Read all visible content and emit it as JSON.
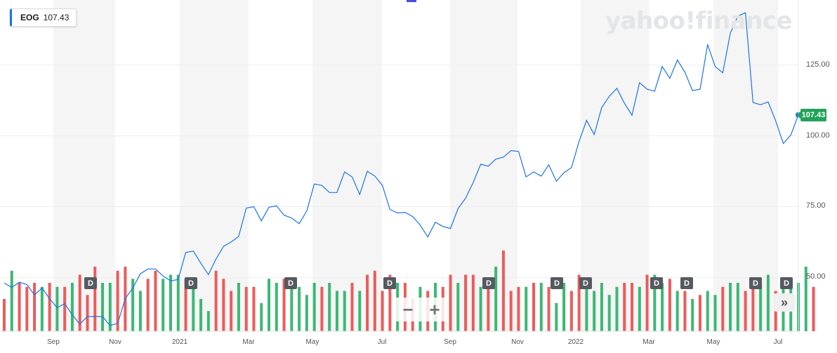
{
  "ticker": {
    "symbol": "EOG",
    "price": "107.43"
  },
  "brand": {
    "text": "yahoo!finance"
  },
  "last_price_label": "107.43",
  "controls": {
    "zoom_out": "−",
    "zoom_in": "+",
    "next": "»"
  },
  "dividend_marker": "D",
  "colors": {
    "line": "#1a73e8",
    "volume_up": "#3cb874",
    "volume_down": "#ec5b5b",
    "price_tag": "#21a35a"
  },
  "chart_data": {
    "type": "line",
    "title": "",
    "xlabel": "",
    "ylabel": "",
    "ylim": [
      31,
      148
    ],
    "yticks": [
      "125.00",
      "100.00",
      "75.00",
      "50.00"
    ],
    "xticks": [
      "Sep",
      "Nov",
      "2021",
      "Mar",
      "May",
      "Jul",
      "Sep",
      "Nov",
      "2022",
      "Mar",
      "May",
      "Jul"
    ],
    "grid": true,
    "series": [
      {
        "values": [
          48,
          46.5,
          48.3,
          47.5,
          43.8,
          46.3,
          42.5,
          39.3,
          40.8,
          36.8,
          33.5,
          36.2,
          36.2,
          36.2,
          33,
          33.8,
          42.5,
          46.3,
          51.3,
          53,
          53,
          50.5,
          48.8,
          49.3,
          58.8,
          59.3,
          55,
          51,
          56.5,
          61,
          62.5,
          64.5,
          74.5,
          75,
          70,
          74.8,
          75.3,
          72,
          71,
          69,
          73.5,
          83,
          82.5,
          80,
          80,
          87.3,
          85.5,
          79.3,
          87.5,
          85.8,
          82.5,
          74,
          72.8,
          73,
          71.5,
          68.5,
          64.3,
          69.5,
          68,
          67.3,
          74.3,
          78,
          83.5,
          90,
          89.3,
          91.8,
          92.5,
          94.8,
          94.5,
          85.5,
          87.3,
          85.8,
          89.8,
          84,
          87,
          88.8,
          98,
          105.5,
          100.5,
          110,
          114,
          116.8,
          111.5,
          107.3,
          118.8,
          116.5,
          115.8,
          124.5,
          120.3,
          126.8,
          122.5,
          116,
          116.5,
          132.3,
          124.5,
          122.3,
          136.3,
          142.3,
          143.5,
          111.8,
          111,
          112,
          105.3,
          97.3,
          100.3,
          107.4
        ]
      }
    ],
    "volume": {
      "values": [
        8,
        15,
        12,
        11,
        12,
        11,
        12,
        11,
        11,
        12,
        14,
        9,
        16,
        12,
        12,
        15,
        16,
        13,
        10,
        13,
        15,
        13,
        14,
        14,
        13,
        11,
        8,
        5,
        15,
        13,
        10,
        12,
        11,
        11,
        7,
        13,
        12,
        13,
        11,
        11,
        9,
        12,
        11,
        12,
        10,
        10,
        12,
        10,
        14,
        15,
        10,
        14,
        12,
        12,
        8,
        11,
        10,
        12,
        11,
        14,
        12,
        14,
        14,
        11,
        13,
        16,
        20,
        10,
        11,
        11,
        12,
        12,
        11,
        7,
        12,
        10,
        14,
        13,
        10,
        12,
        9,
        11,
        12,
        12,
        11,
        14,
        14,
        12,
        13,
        10,
        10,
        8,
        9,
        10,
        9,
        11,
        12,
        12,
        10,
        12,
        12,
        14,
        10,
        12,
        12,
        12,
        16,
        11
      ],
      "up": [
        false,
        true,
        false,
        false,
        false,
        true,
        false,
        true,
        false,
        true,
        false,
        false,
        false,
        true,
        true,
        false,
        false,
        true,
        true,
        false,
        false,
        true,
        true,
        true,
        false,
        true,
        true,
        true,
        false,
        false,
        false,
        true,
        false,
        false,
        true,
        true,
        true,
        false,
        true,
        true,
        true,
        true,
        false,
        true,
        true,
        true,
        false,
        true,
        false,
        false,
        false,
        false,
        true,
        false,
        false,
        true,
        false,
        true,
        false,
        false,
        true,
        false,
        false,
        true,
        false,
        true,
        false,
        false,
        false,
        true,
        false,
        true,
        false,
        true,
        true,
        false,
        false,
        true,
        true,
        true,
        true,
        true,
        false,
        false,
        true,
        false,
        true,
        true,
        false,
        true,
        false,
        true,
        false,
        true,
        true,
        false,
        true,
        true,
        false,
        false,
        true,
        true,
        false,
        true,
        true,
        true,
        true,
        false
      ]
    },
    "dividend_markers": [
      129,
      272,
      414,
      555,
      696,
      793,
      834,
      935,
      978,
      1076,
      1120
    ]
  }
}
